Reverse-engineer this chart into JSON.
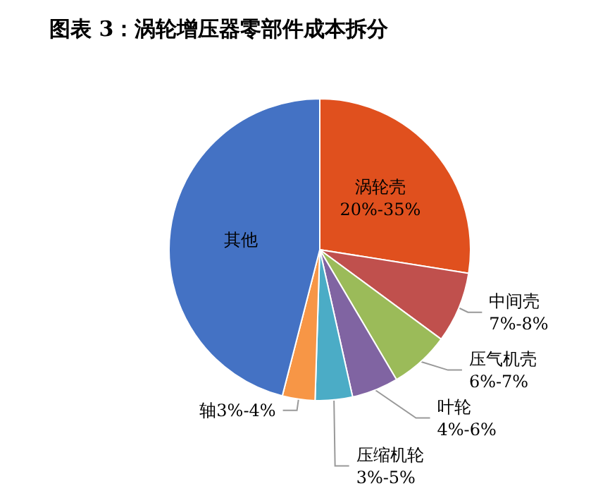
{
  "chart_data": {
    "type": "pie",
    "title": "图表 3：涡轮增压器零部件成本拆分",
    "categories": [
      "涡轮壳20%-35%",
      "中间壳7%-8%",
      "压气机壳6%-7%",
      "叶轮4%-6%",
      "压缩机轮3%-5%",
      "轴3%-4%",
      "其他"
    ],
    "values": [
      27.5,
      7.6,
      6.4,
      5,
      4,
      3.5,
      46
    ],
    "colors": [
      "#e0501e",
      "#c0504d",
      "#9bbb59",
      "#8064a2",
      "#4bacc6",
      "#f79646",
      "#4472c4"
    ],
    "legend": false
  }
}
